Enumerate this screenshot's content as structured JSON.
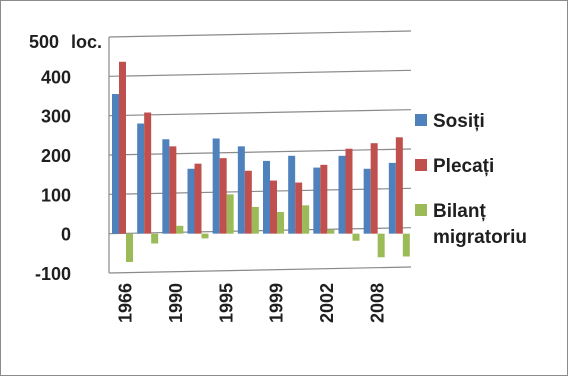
{
  "chart_data": {
    "type": "bar",
    "y_unit_label": "loc.",
    "y_ticks": [
      -100,
      0,
      100,
      200,
      300,
      400,
      500
    ],
    "ylim": [
      -100,
      500
    ],
    "x_tick_labels": [
      "1966",
      "1990",
      "1995",
      "1999",
      "2002",
      "2008"
    ],
    "group_count": 12,
    "legend_placement": "right",
    "grid": true,
    "series": [
      {
        "name": "Sosiți",
        "color": "#4f81bd",
        "values": [
          355,
          280,
          240,
          165,
          242,
          222,
          185,
          198,
          168,
          198,
          165,
          180
        ]
      },
      {
        "name": "Plecați",
        "color": "#c0504d",
        "values": [
          437,
          308,
          222,
          178,
          192,
          160,
          135,
          130,
          175,
          216,
          230,
          245
        ]
      },
      {
        "name": "Bilanț\nmigratoriu",
        "color": "#9bbb59",
        "values": [
          -72,
          -25,
          20,
          -12,
          100,
          68,
          55,
          72,
          10,
          -18,
          -60,
          -58
        ]
      }
    ]
  }
}
